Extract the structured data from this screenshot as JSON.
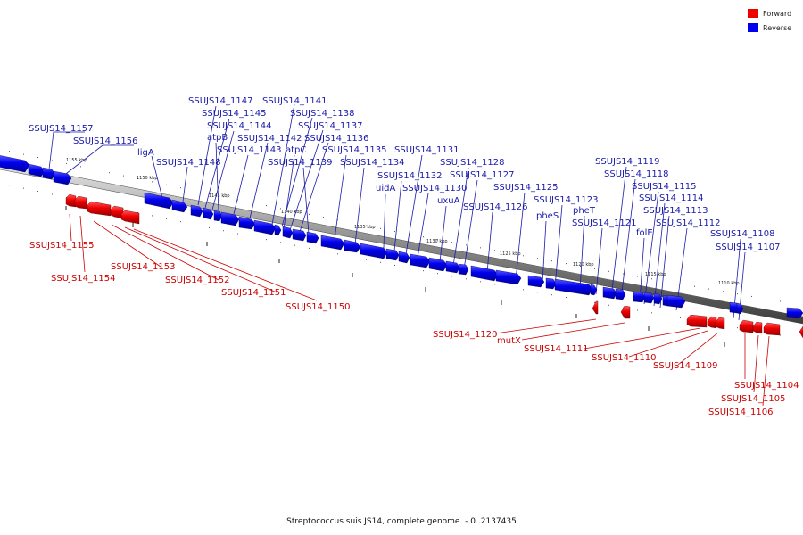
{
  "caption": "Streptococcus suis JS14, complete genome. - 0..2137435",
  "legend": {
    "forward": {
      "label": "Forward",
      "color": "#ee0000"
    },
    "reverse": {
      "label": "Reverse",
      "color": "#0000ee"
    }
  },
  "scale_labels": [
    "1155 kbp",
    "1150 kbp",
    "1145 kbp",
    "1140 kbp",
    "1135 kbp",
    "1130 kbp",
    "1125 kbp",
    "1120 kbp",
    "1115 kbp",
    "1110 kbp"
  ],
  "genes_reverse": [
    "SSUJS14_1157",
    "SSUJS14_1156",
    "ligA",
    "SSUJS14_1148",
    "SSUJS14_1147",
    "SSUJS14_1145",
    "SSUJS14_1144",
    "atpB",
    "SSUJS14_1143",
    "SSUJS14_1142",
    "SSUJS14_1141",
    "SSUJS14_1138",
    "SSUJS14_1137",
    "SSUJS14_1136",
    "atpC",
    "SSUJS14_1139",
    "SSUJS14_1135",
    "SSUJS14_1134",
    "SSUJS14_1131",
    "SSUJS14_1132",
    "uidA",
    "SSUJS14_1130",
    "uxuA",
    "SSUJS14_1128",
    "SSUJS14_1127",
    "SSUJS14_1126",
    "SSUJS14_1125",
    "SSUJS14_1123",
    "pheS",
    "pheT",
    "SSUJS14_1121",
    "SSUJS14_1119",
    "SSUJS14_1118",
    "SSUJS14_1115",
    "SSUJS14_1114",
    "SSUJS14_1113",
    "SSUJS14_1112",
    "folE",
    "SSUJS14_1108",
    "SSUJS14_1107"
  ],
  "genes_forward": [
    "SSUJS14_1155",
    "SSUJS14_1154",
    "SSUJS14_1153",
    "SSUJS14_1152",
    "SSUJS14_1151",
    "SSUJS14_1150",
    "SSUJS14_1120",
    "mutX",
    "SSUJS14_1111",
    "SSUJS14_1110",
    "SSUJS14_1109",
    "SSUJS14_1104",
    "SSUJS14_1105",
    "SSUJS14_1106"
  ]
}
